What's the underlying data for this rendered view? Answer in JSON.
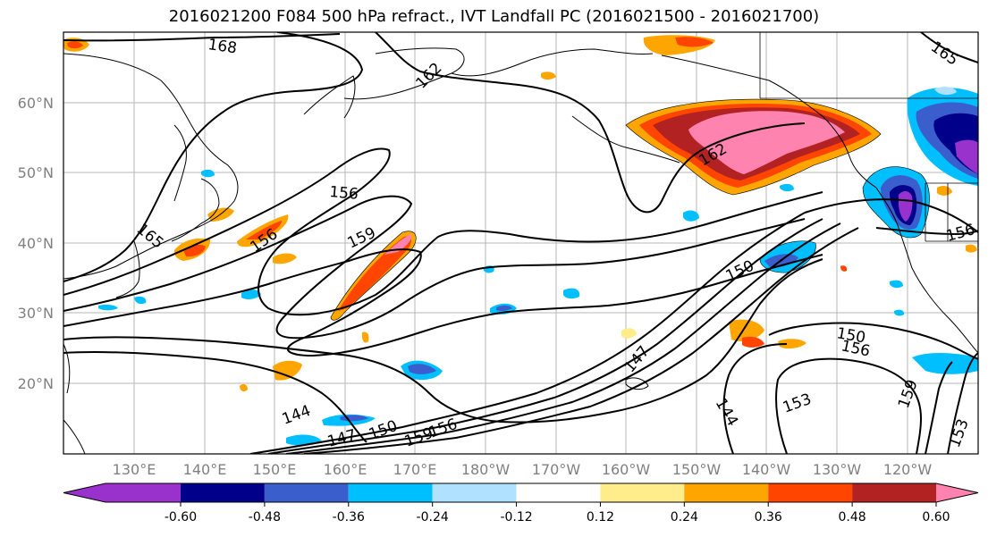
{
  "title": "2016021200 F084 500 hPa refract., IVT Landfall PC (2016021500 - 2016021700)",
  "lat_labels": [
    "60°N",
    "50°N",
    "40°N",
    "30°N",
    "20°N"
  ],
  "lon_labels": [
    "130°E",
    "140°E",
    "150°E",
    "160°E",
    "170°E",
    "180°W",
    "170°W",
    "160°W",
    "150°W",
    "140°W",
    "130°W",
    "120°W"
  ],
  "contour_labels": [
    "168",
    "162",
    "156",
    "159",
    "165",
    "162",
    "156",
    "150",
    "150",
    "156",
    "147",
    "144",
    "144",
    "147",
    "150",
    "159",
    "156",
    "153",
    "159",
    "153",
    "165",
    "156"
  ],
  "colorbar": {
    "tick_labels": [
      "-0.60",
      "-0.48",
      "-0.36",
      "-0.24",
      "-0.12",
      "0.12",
      "0.24",
      "0.36",
      "0.48",
      "0.60"
    ],
    "colors": [
      "#9932CC",
      "#00008B",
      "#3A5FCD",
      "#00BFFF",
      "#B0E2FF",
      "#FFFFFF",
      "#FFEC8B",
      "#FFA500",
      "#FF4500",
      "#B22222",
      "#FF83AE"
    ]
  }
}
